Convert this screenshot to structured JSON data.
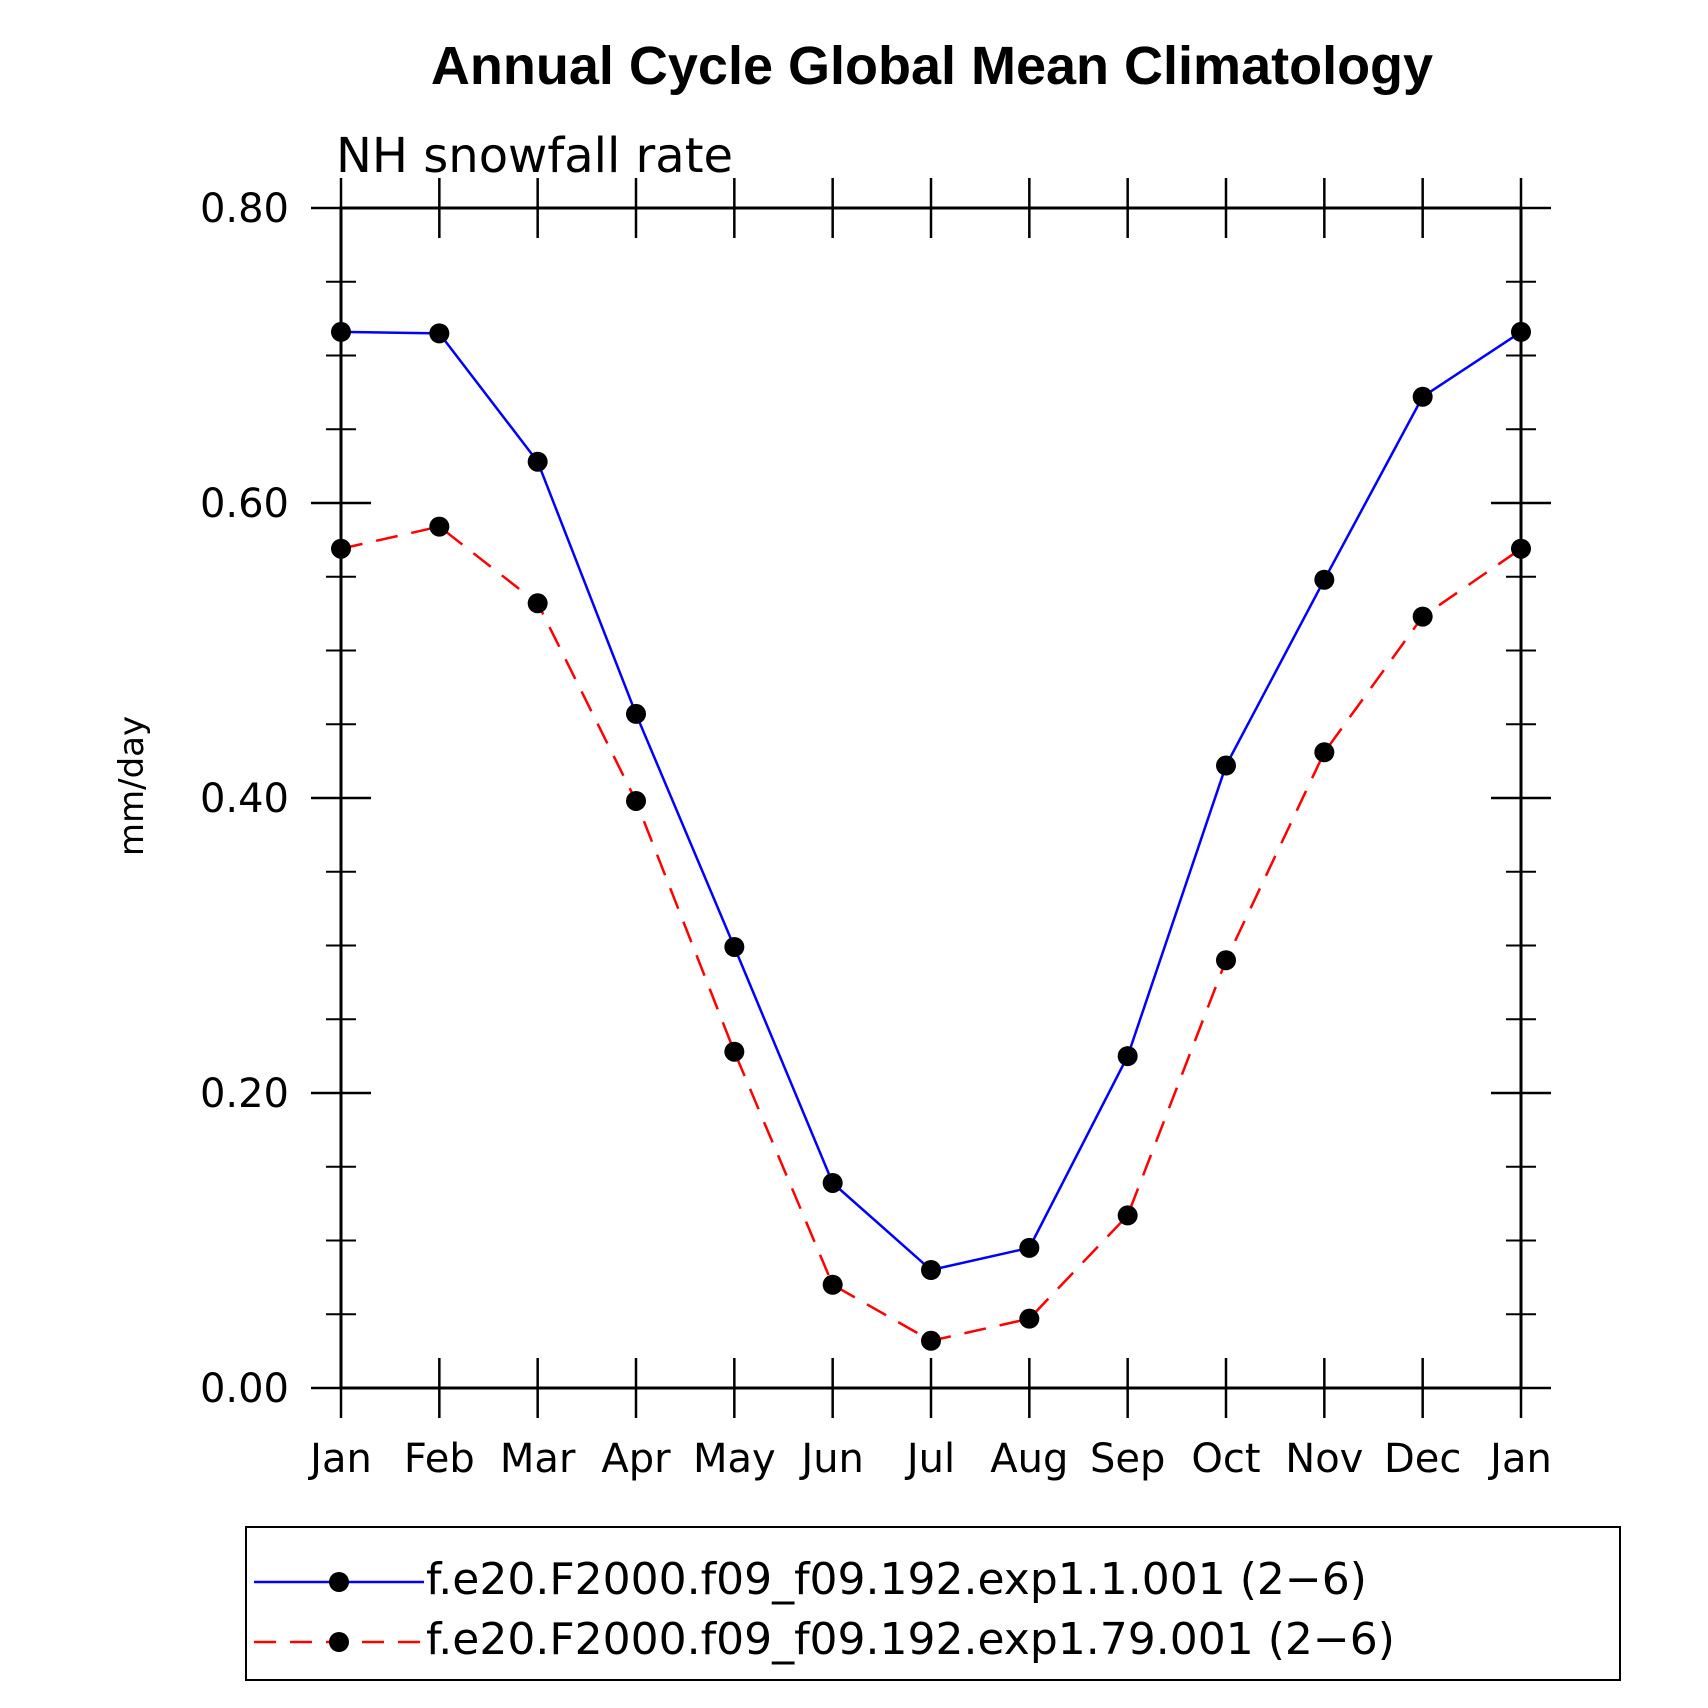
{
  "chart_data": {
    "type": "line",
    "title": "Annual Cycle Global Mean Climatology",
    "subtitle": "NH snowfall rate",
    "xlabel": "",
    "ylabel": "mm/day",
    "categories": [
      "Jan",
      "Feb",
      "Mar",
      "Apr",
      "May",
      "Jun",
      "Jul",
      "Aug",
      "Sep",
      "Oct",
      "Nov",
      "Dec",
      "Jan"
    ],
    "ylim": [
      0.0,
      0.8
    ],
    "yticks": [
      "0.00",
      "0.20",
      "0.40",
      "0.60",
      "0.80"
    ],
    "grid": false,
    "legend_position": "bottom",
    "series": [
      {
        "name": "f.e20.F2000.f09_f09.192.exp1.1.001 (2−6)",
        "color": "#0000ff",
        "line_style": "solid",
        "values": [
          0.716,
          0.715,
          0.628,
          0.457,
          0.299,
          0.139,
          0.08,
          0.095,
          0.225,
          0.422,
          0.548,
          0.672,
          0.716
        ]
      },
      {
        "name": "f.e20.F2000.f09_f09.192.exp1.79.001 (2−6)",
        "color": "#ff0000",
        "line_style": "dashed",
        "values": [
          0.569,
          0.584,
          0.532,
          0.398,
          0.228,
          0.07,
          0.032,
          0.047,
          0.117,
          0.29,
          0.431,
          0.523,
          0.569
        ]
      }
    ]
  }
}
